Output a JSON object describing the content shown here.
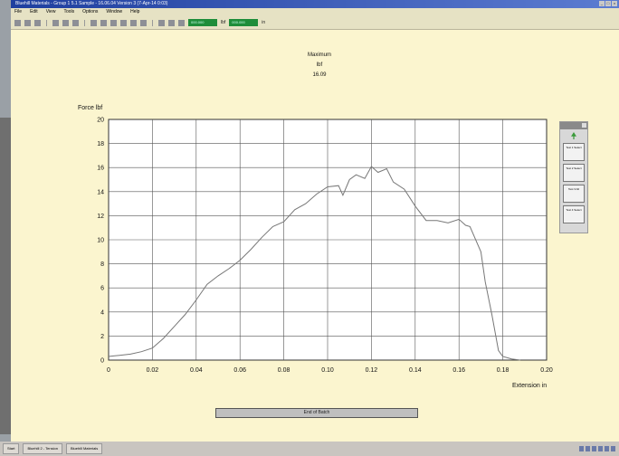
{
  "window": {
    "title": "Bluehill Materials - Group 1 5.1 Sample - 16.06.04 Version 3 (7-Apr-14 0:03)",
    "menu": [
      "File",
      "Edit",
      "View",
      "Tools",
      "Options",
      "Window",
      "Help"
    ]
  },
  "toolbar": {
    "readout_1": "000.000",
    "readout_1_unit": "lbf",
    "readout_2": "000.000",
    "readout_2_unit": "in"
  },
  "maximum": {
    "label": "Maximum",
    "unit": "lbf",
    "value": "16.09"
  },
  "chart_data": {
    "type": "line",
    "ylabel": "Force lbf",
    "xlabel": "Extension in",
    "xlim": [
      0,
      0.2
    ],
    "ylim": [
      0,
      20
    ],
    "x_ticks": [
      "0",
      "0.02",
      "0.04",
      "0.06",
      "0.08",
      "0.10",
      "0.12",
      "0.14",
      "0.16",
      "0.18",
      "0.20"
    ],
    "y_ticks": [
      "0",
      "2",
      "4",
      "6",
      "8",
      "10",
      "12",
      "14",
      "16",
      "18",
      "20"
    ],
    "grid": true,
    "line_color": "#777777",
    "series": [
      {
        "x": [
          0,
          0.005,
          0.01,
          0.015,
          0.02,
          0.025,
          0.03,
          0.035,
          0.04,
          0.045,
          0.05,
          0.055,
          0.06,
          0.065,
          0.07,
          0.075,
          0.08,
          0.085,
          0.09,
          0.095,
          0.1,
          0.105,
          0.107,
          0.11,
          0.113,
          0.117,
          0.12,
          0.123,
          0.127,
          0.13,
          0.135,
          0.14,
          0.145,
          0.15,
          0.155,
          0.16,
          0.163,
          0.165,
          0.17,
          0.172,
          0.175,
          0.178,
          0.18,
          0.184,
          0.188
        ],
        "y": [
          0.3,
          0.4,
          0.5,
          0.7,
          1.0,
          1.8,
          2.8,
          3.8,
          5.0,
          6.3,
          7.0,
          7.6,
          8.3,
          9.2,
          10.2,
          11.1,
          11.5,
          12.5,
          13.0,
          13.8,
          14.4,
          14.5,
          13.7,
          15.0,
          15.4,
          15.1,
          16.09,
          15.6,
          15.9,
          14.8,
          14.2,
          12.8,
          11.6,
          11.6,
          11.4,
          11.7,
          11.2,
          11.1,
          9.0,
          6.5,
          3.8,
          0.8,
          0.3,
          0.1,
          0.0
        ]
      }
    ]
  },
  "side_panel": {
    "buttons": [
      "Test 1 Select",
      "Test 2 Select",
      "Test 3 All",
      "Test 4 Select"
    ]
  },
  "bottom_button": {
    "label": "End of Batch"
  },
  "taskbar": {
    "items": [
      "Start",
      "Bluehill 2 - Tension",
      "Bluehill Materials"
    ]
  }
}
